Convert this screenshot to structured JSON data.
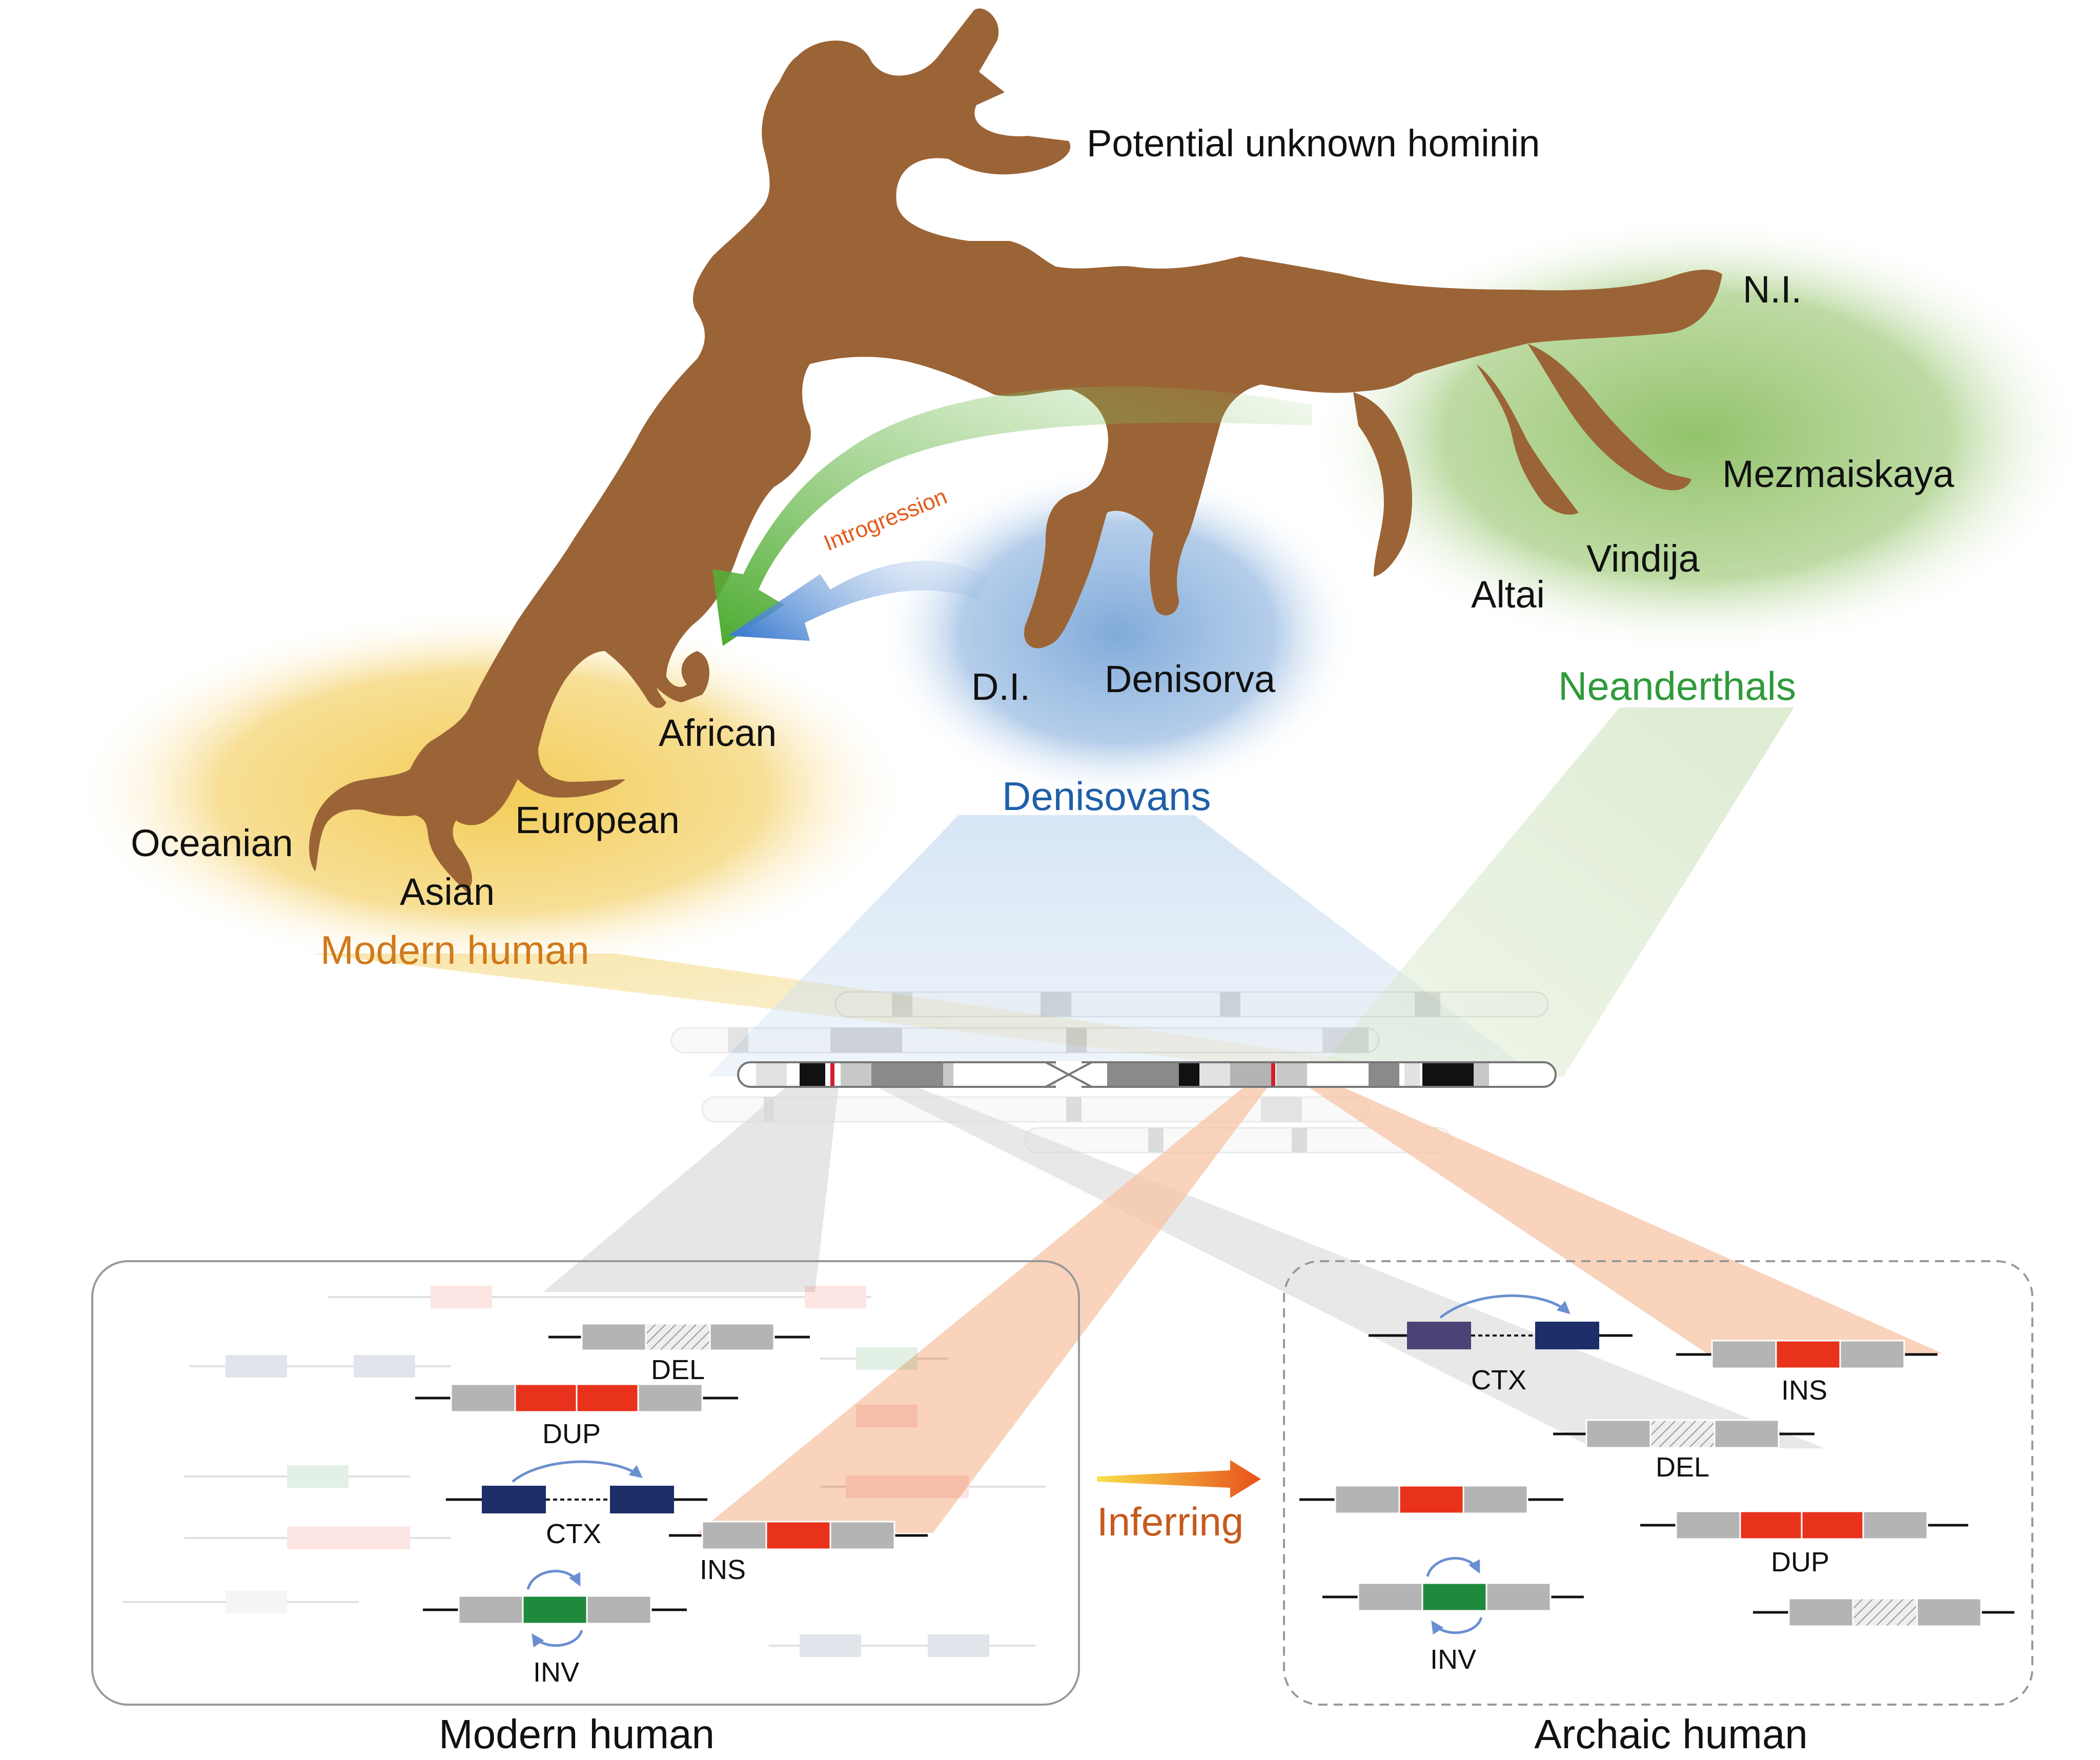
{
  "labels": {
    "unknown": "Potential unknown hominin",
    "ni": "N.I.",
    "mezmaiskaya": "Mezmaiskaya",
    "vindija": "Vindija",
    "altai": "Altai",
    "neanderthals": "Neanderthals",
    "di": "D.I.",
    "denisorva": "Denisorva",
    "denisovans": "Denisovans",
    "african": "African",
    "european": "European",
    "asian": "Asian",
    "oceanian": "Oceanian",
    "modern_human_group": "Modern human",
    "introgression": "Introgression",
    "inferring": "Inferring"
  },
  "sv_types": {
    "del": "DEL",
    "dup": "DUP",
    "ctx": "CTX",
    "ins": "INS",
    "inv": "INV"
  },
  "panels": {
    "modern_caption": "Modern human",
    "archaic_caption": "Archaic human"
  },
  "colors": {
    "tree_brown": "#9b6436",
    "modern_yellow": "#f2c94c",
    "modern_text": "#d07a1c",
    "denisovan_blue": "#7aa6d8",
    "denisovan_text": "#1f5fa8",
    "neanderthal_green": "#8cbf63",
    "neanderthal_text": "#2f9a3a",
    "introgression_text": "#e45a1b",
    "dup_red": "#e8321c",
    "ctx_navy": "#1d2e68",
    "inv_green": "#1f8a3c",
    "segment_grey": "#b4b4b4",
    "arrow_blue": "#6a8fd0"
  }
}
